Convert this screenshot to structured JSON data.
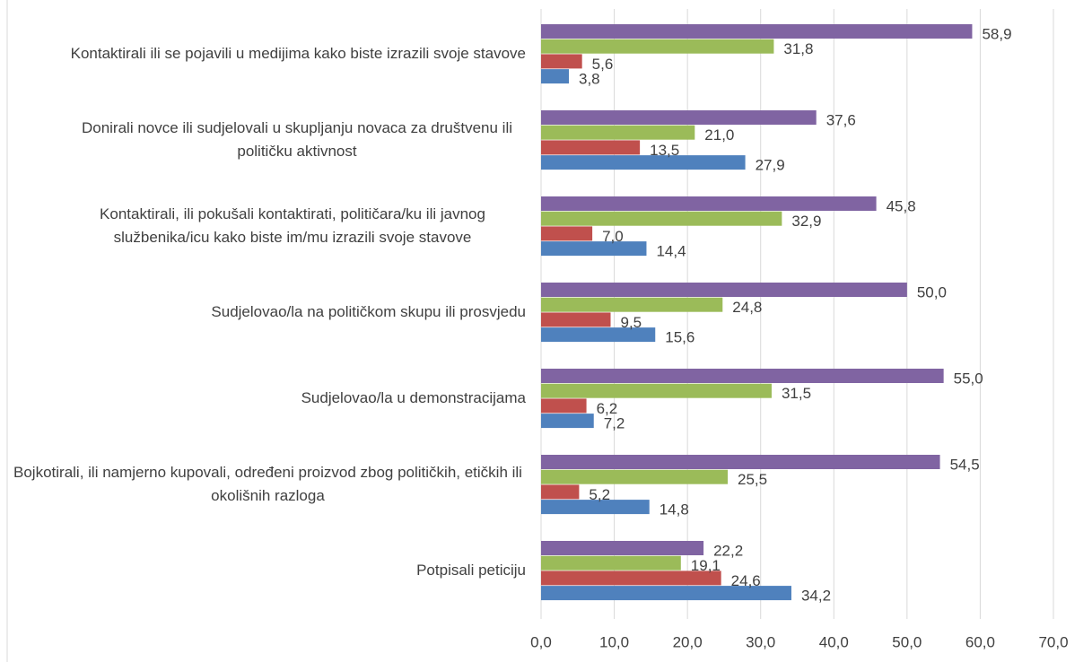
{
  "chart_data": {
    "type": "bar",
    "orientation": "horizontal",
    "categories": [
      "Kontaktirali ili se pojavili u medijima kako biste izrazili svoje stavove",
      "Donirali novce ili sudjelovali u skupljanju novaca za društvenu ili političku aktivnost",
      "Kontaktirali, ili pokušali kontaktirati, političara/ku ili javnog službenika/icu kako biste im/mu izrazili svoje stavove",
      "Sudjelovao/la na političkom skupu ili prosvjedu",
      "Sudjelovao/la u demonstracijama",
      "Bojkotirali, ili namjerno kupovali, određeni proizvod zbog političkih, etičkih ili okolišnih razloga",
      "Potpisali peticiju"
    ],
    "series": [
      {
        "color": "#4f81bd",
        "values": [
          3.8,
          27.9,
          14.4,
          15.6,
          7.2,
          14.8,
          34.2
        ],
        "value_labels": [
          "3,8",
          "27,9",
          "14,4",
          "15,6",
          "7,2",
          "14,8",
          "34,2"
        ]
      },
      {
        "color": "#c0504d",
        "values": [
          5.6,
          13.5,
          7.0,
          9.5,
          6.2,
          5.2,
          24.6
        ],
        "value_labels": [
          "5,6",
          "13,5",
          "7,0",
          "9,5",
          "6,2",
          "5,2",
          "24,6"
        ]
      },
      {
        "color": "#9bbb59",
        "values": [
          31.8,
          21.0,
          32.9,
          24.8,
          31.5,
          25.5,
          19.1
        ],
        "value_labels": [
          "31,8",
          "21,0",
          "32,9",
          "24,8",
          "31,5",
          "25,5",
          "19,1"
        ]
      },
      {
        "color": "#8064a2",
        "values": [
          58.9,
          37.6,
          45.8,
          50.0,
          55.0,
          54.5,
          22.2
        ],
        "value_labels": [
          "58,9",
          "37,6",
          "45,8",
          "50,0",
          "55,0",
          "54,5",
          "22,2"
        ]
      }
    ],
    "xlim": [
      0,
      70
    ],
    "xticks": [
      {
        "value": 0,
        "label": "0,0"
      },
      {
        "value": 10,
        "label": "10,0"
      },
      {
        "value": 20,
        "label": "20,0"
      },
      {
        "value": 30,
        "label": "30,0"
      },
      {
        "value": 40,
        "label": "40,0"
      },
      {
        "value": 50,
        "label": "50,0"
      },
      {
        "value": 60,
        "label": "60,0"
      },
      {
        "value": 70,
        "label": "70,0"
      }
    ],
    "grid": true
  }
}
